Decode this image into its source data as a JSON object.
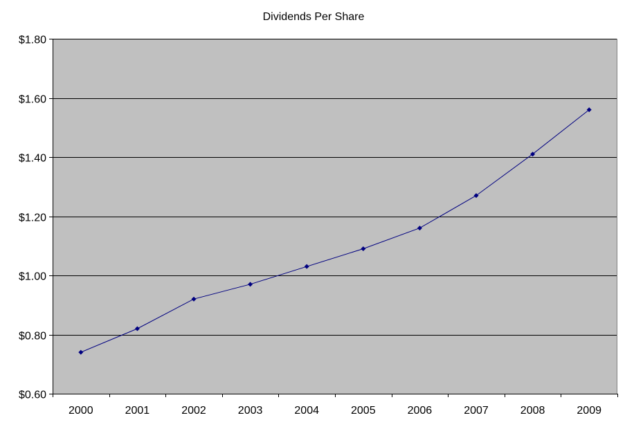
{
  "chart_data": {
    "type": "line",
    "title": "Dividends Per Share",
    "xlabel": "",
    "ylabel": "",
    "categories": [
      "2000",
      "2001",
      "2002",
      "2003",
      "2004",
      "2005",
      "2006",
      "2007",
      "2008",
      "2009"
    ],
    "series": [
      {
        "values": [
          0.74,
          0.82,
          0.92,
          0.97,
          1.03,
          1.09,
          1.16,
          1.27,
          1.41,
          1.56
        ]
      }
    ],
    "ylim": [
      0.6,
      1.8
    ],
    "yticks": [
      0.6,
      0.8,
      1.0,
      1.2,
      1.4,
      1.6,
      1.8
    ],
    "ytick_labels": [
      "$0.60",
      "$0.80",
      "$1.00",
      "$1.20",
      "$1.40",
      "$1.60",
      "$1.80"
    ],
    "grid": true,
    "legend": "none",
    "colors": {
      "plot_background": "#c0c0c0",
      "gridline": "#000000",
      "series_line": "#000080",
      "marker": "#000080"
    },
    "marker": "diamond"
  }
}
